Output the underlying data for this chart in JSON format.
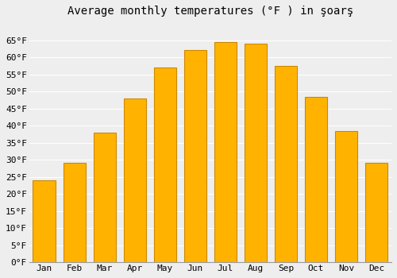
{
  "title": "Average monthly temperatures (°F ) in şoarş",
  "months": [
    "Jan",
    "Feb",
    "Mar",
    "Apr",
    "May",
    "Jun",
    "Jul",
    "Aug",
    "Sep",
    "Oct",
    "Nov",
    "Dec"
  ],
  "values": [
    24,
    29,
    38,
    48,
    57,
    62,
    64.5,
    64,
    57.5,
    48.5,
    38.5,
    29
  ],
  "bar_color": "#FFB300",
  "bar_edge_color": "#CC8800",
  "ylim": [
    0,
    70
  ],
  "yticks": [
    0,
    5,
    10,
    15,
    20,
    25,
    30,
    35,
    40,
    45,
    50,
    55,
    60,
    65
  ],
  "background_color": "#eeeeee",
  "grid_color": "#ffffff",
  "title_fontsize": 10,
  "tick_fontsize": 8,
  "font_family": "monospace"
}
